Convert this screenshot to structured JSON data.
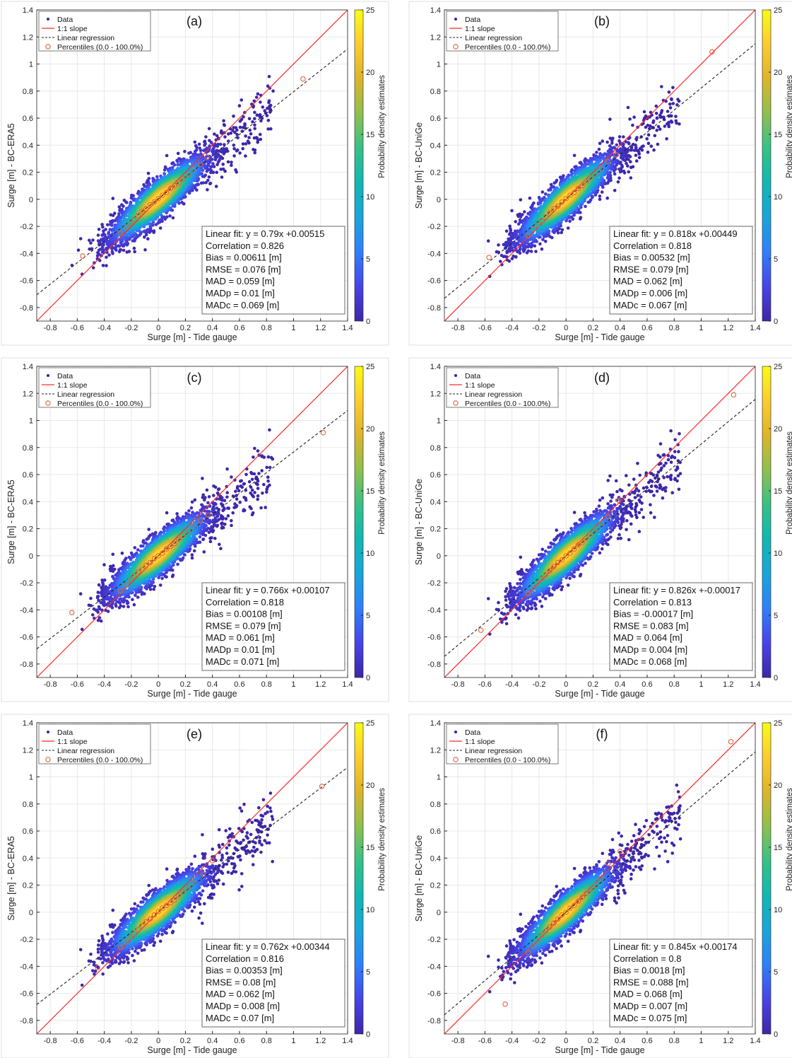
{
  "figure": {
    "xlabel": "Surge [m] - Tide gauge",
    "colorbar_label": "Probability density estimates",
    "colorbar_ticks": [
      "0",
      "5",
      "10",
      "15",
      "20",
      "25"
    ],
    "legend": {
      "data": "Data",
      "one_to_one": "1:1 slope",
      "regression": "Linear regression",
      "percentiles": "Percentiles (0.0 - 100.0%)"
    },
    "colors": {
      "one_to_one": "#ff2a2a",
      "regression": "#222222",
      "percentiles": "#e0643c",
      "data": "#3a1fa0",
      "grid": "#e8e8e8"
    },
    "colormap": [
      "#3e26a8",
      "#4744e8",
      "#2f7ffb",
      "#1aa5da",
      "#10b8b3",
      "#37c186",
      "#8fc04e",
      "#dcb52b",
      "#fdcb2f",
      "#f9fb15"
    ]
  },
  "chart_data": [
    {
      "type": "scatter",
      "panel": "(a)",
      "ylabel": "Surge [m] - BC-ERA5",
      "xlim": [
        -0.9,
        1.4
      ],
      "ylim": [
        -0.9,
        1.4
      ],
      "xticks": [
        -0.8,
        -0.6,
        -0.4,
        -0.2,
        0,
        0.2,
        0.4,
        0.6,
        0.8,
        1,
        1.2,
        1.4
      ],
      "yticks": [
        -0.8,
        -0.6,
        -0.4,
        -0.2,
        0,
        0.2,
        0.4,
        0.6,
        0.8,
        1,
        1.2,
        1.4
      ],
      "grid": true,
      "legend_position": "top-left",
      "colorbar_range": [
        0,
        25
      ],
      "regression": {
        "slope": 0.79,
        "intercept": 0.00515
      },
      "percentiles": {
        "x": [
          -0.56,
          -0.28,
          -0.24,
          -0.21,
          -0.18,
          -0.15,
          -0.12,
          -0.09,
          -0.06,
          -0.03,
          0,
          0.03,
          0.06,
          0.09,
          0.12,
          0.15,
          0.18,
          0.22,
          0.26,
          0.31,
          0.36,
          1.07
        ],
        "y": [
          -0.42,
          -0.25,
          -0.21,
          -0.18,
          -0.15,
          -0.12,
          -0.09,
          -0.07,
          -0.04,
          -0.02,
          0.005,
          0.03,
          0.05,
          0.08,
          0.1,
          0.12,
          0.15,
          0.18,
          0.22,
          0.26,
          0.31,
          0.89
        ]
      },
      "stats": [
        "Linear fit: y = 0.79x +0.00515",
        "Correlation = 0.826",
        "Bias = 0.00611 [m]",
        "RMSE = 0.076 [m]",
        "MAD = 0.059 [m]",
        "MADp = 0.01 [m]",
        "MADc = 0.069 [m]"
      ]
    },
    {
      "type": "scatter",
      "panel": "(b)",
      "ylabel": "Surge [m] - BC-UniGe",
      "xlim": [
        -0.9,
        1.4
      ],
      "ylim": [
        -0.9,
        1.4
      ],
      "xticks": [
        -0.8,
        -0.6,
        -0.4,
        -0.2,
        0,
        0.2,
        0.4,
        0.6,
        0.8,
        1,
        1.2,
        1.4
      ],
      "yticks": [
        -0.8,
        -0.6,
        -0.4,
        -0.2,
        0,
        0.2,
        0.4,
        0.6,
        0.8,
        1,
        1.2,
        1.4
      ],
      "grid": true,
      "legend_position": "top-left",
      "colorbar_range": [
        0,
        25
      ],
      "regression": {
        "slope": 0.818,
        "intercept": 0.00449
      },
      "percentiles": {
        "x": [
          -0.57,
          -0.28,
          -0.24,
          -0.21,
          -0.18,
          -0.15,
          -0.12,
          -0.09,
          -0.06,
          -0.03,
          0,
          0.03,
          0.06,
          0.09,
          0.12,
          0.15,
          0.18,
          0.22,
          0.26,
          0.31,
          0.37,
          1.08
        ],
        "y": [
          -0.43,
          -0.27,
          -0.22,
          -0.19,
          -0.16,
          -0.13,
          -0.1,
          -0.07,
          -0.05,
          -0.02,
          0.005,
          0.03,
          0.05,
          0.08,
          0.1,
          0.13,
          0.16,
          0.19,
          0.23,
          0.28,
          0.33,
          1.09
        ]
      },
      "stats": [
        "Linear fit: y = 0.818x +0.00449",
        "Correlation = 0.818",
        "Bias = 0.00532 [m]",
        "RMSE = 0.079 [m]",
        "MAD = 0.062 [m]",
        "MADp = 0.006 [m]",
        "MADc = 0.067 [m]"
      ]
    },
    {
      "type": "scatter",
      "panel": "(c)",
      "ylabel": "Surge [m] - BC-ERA5",
      "xlim": [
        -0.9,
        1.4
      ],
      "ylim": [
        -0.9,
        1.4
      ],
      "xticks": [
        -0.8,
        -0.6,
        -0.4,
        -0.2,
        0,
        0.2,
        0.4,
        0.6,
        0.8,
        1,
        1.2,
        1.4
      ],
      "yticks": [
        -0.8,
        -0.6,
        -0.4,
        -0.2,
        0,
        0.2,
        0.4,
        0.6,
        0.8,
        1,
        1.2,
        1.4
      ],
      "grid": true,
      "legend_position": "top-left",
      "colorbar_range": [
        0,
        25
      ],
      "regression": {
        "slope": 0.766,
        "intercept": 0.00107
      },
      "percentiles": {
        "x": [
          -0.64,
          -0.28,
          -0.24,
          -0.21,
          -0.18,
          -0.15,
          -0.12,
          -0.09,
          -0.06,
          -0.03,
          0,
          0.03,
          0.06,
          0.09,
          0.12,
          0.15,
          0.18,
          0.22,
          0.26,
          0.31,
          0.37,
          1.22
        ],
        "y": [
          -0.42,
          -0.26,
          -0.22,
          -0.18,
          -0.15,
          -0.12,
          -0.1,
          -0.07,
          -0.05,
          -0.02,
          0,
          0.02,
          0.05,
          0.07,
          0.09,
          0.12,
          0.15,
          0.18,
          0.22,
          0.26,
          0.3,
          0.91
        ]
      },
      "stats": [
        "Linear fit: y = 0.766x +0.00107",
        "Correlation = 0.818",
        "Bias = 0.00108 [m]",
        "RMSE = 0.079 [m]",
        "MAD = 0.061 [m]",
        "MADp = 0.01 [m]",
        "MADc = 0.071 [m]"
      ]
    },
    {
      "type": "scatter",
      "panel": "(d)",
      "ylabel": "Surge [m] - BC-UniGe",
      "xlim": [
        -0.9,
        1.4
      ],
      "ylim": [
        -0.9,
        1.4
      ],
      "xticks": [
        -0.8,
        -0.6,
        -0.4,
        -0.2,
        0,
        0.2,
        0.4,
        0.6,
        0.8,
        1,
        1.2,
        1.4
      ],
      "yticks": [
        -0.8,
        -0.6,
        -0.4,
        -0.2,
        0,
        0.2,
        0.4,
        0.6,
        0.8,
        1,
        1.2,
        1.4
      ],
      "grid": true,
      "legend_position": "top-left",
      "colorbar_range": [
        0,
        25
      ],
      "regression": {
        "slope": 0.826,
        "intercept": -0.00017
      },
      "percentiles": {
        "x": [
          -0.63,
          -0.28,
          -0.24,
          -0.21,
          -0.18,
          -0.15,
          -0.12,
          -0.09,
          -0.06,
          -0.03,
          0,
          0.03,
          0.06,
          0.09,
          0.12,
          0.15,
          0.18,
          0.22,
          0.26,
          0.31,
          0.39,
          1.24
        ],
        "y": [
          -0.55,
          -0.28,
          -0.24,
          -0.2,
          -0.17,
          -0.14,
          -0.11,
          -0.08,
          -0.05,
          -0.03,
          0,
          0.02,
          0.05,
          0.08,
          0.1,
          0.13,
          0.16,
          0.2,
          0.24,
          0.29,
          0.41,
          1.19
        ]
      },
      "stats": [
        "Linear fit: y = 0.826x +-0.00017",
        "Correlation = 0.813",
        "Bias = -0.00017 [m]",
        "RMSE = 0.083 [m]",
        "MAD = 0.064 [m]",
        "MADp = 0.004 [m]",
        "MADc = 0.068 [m]"
      ]
    },
    {
      "type": "scatter",
      "panel": "(e)",
      "ylabel": "Surge [m] - BC-ERA5",
      "xlim": [
        -0.9,
        1.4
      ],
      "ylim": [
        -0.9,
        1.4
      ],
      "xticks": [
        -0.8,
        -0.6,
        -0.4,
        -0.2,
        0,
        0.2,
        0.4,
        0.6,
        0.8,
        1,
        1.2,
        1.4
      ],
      "yticks": [
        -0.8,
        -0.6,
        -0.4,
        -0.2,
        0,
        0.2,
        0.4,
        0.6,
        0.8,
        1,
        1.2,
        1.4
      ],
      "grid": true,
      "legend_position": "top-left",
      "colorbar_range": [
        0,
        25
      ],
      "regression": {
        "slope": 0.762,
        "intercept": 0.00344
      },
      "percentiles": {
        "x": [
          -0.45,
          -0.28,
          -0.24,
          -0.21,
          -0.18,
          -0.15,
          -0.12,
          -0.09,
          -0.06,
          -0.03,
          0,
          0.03,
          0.06,
          0.09,
          0.12,
          0.15,
          0.18,
          0.22,
          0.26,
          0.33,
          0.4,
          1.21
        ],
        "y": [
          -0.41,
          -0.26,
          -0.22,
          -0.19,
          -0.16,
          -0.13,
          -0.1,
          -0.07,
          -0.05,
          -0.02,
          0.005,
          0.03,
          0.05,
          0.07,
          0.09,
          0.12,
          0.15,
          0.18,
          0.22,
          0.28,
          0.38,
          0.93
        ]
      },
      "stats": [
        "Linear fit: y = 0.762x +0.00344",
        "Correlation = 0.816",
        "Bias = 0.00353 [m]",
        "RMSE = 0.08 [m]",
        "MAD = 0.062 [m]",
        "MADp = 0.008 [m]",
        "MADc = 0.07 [m]"
      ]
    },
    {
      "type": "scatter",
      "panel": "(f)",
      "ylabel": "Surge [m] - BC-UniGe",
      "xlim": [
        -0.9,
        1.4
      ],
      "ylim": [
        -0.9,
        1.4
      ],
      "xticks": [
        -0.8,
        -0.6,
        -0.4,
        -0.2,
        0,
        0.2,
        0.4,
        0.6,
        0.8,
        1,
        1.2,
        1.4
      ],
      "yticks": [
        -0.8,
        -0.6,
        -0.4,
        -0.2,
        0,
        0.2,
        0.4,
        0.6,
        0.8,
        1,
        1.2,
        1.4
      ],
      "grid": true,
      "legend_position": "top-left",
      "colorbar_range": [
        0,
        25
      ],
      "regression": {
        "slope": 0.845,
        "intercept": 0.00174
      },
      "percentiles": {
        "x": [
          -0.45,
          -0.28,
          -0.24,
          -0.21,
          -0.18,
          -0.15,
          -0.12,
          -0.09,
          -0.06,
          -0.03,
          0,
          0.03,
          0.06,
          0.09,
          0.12,
          0.15,
          0.18,
          0.22,
          0.26,
          0.31,
          0.4,
          1.22
        ],
        "y": [
          -0.68,
          -0.3,
          -0.25,
          -0.21,
          -0.17,
          -0.14,
          -0.11,
          -0.08,
          -0.05,
          -0.02,
          0,
          0.03,
          0.05,
          0.08,
          0.11,
          0.14,
          0.17,
          0.2,
          0.25,
          0.36,
          0.45,
          1.26
        ]
      },
      "stats": [
        "Linear fit: y = 0.845x +0.00174",
        "Correlation = 0.8",
        "Bias = 0.0018 [m]",
        "RMSE = 0.088 [m]",
        "MAD = 0.068 [m]",
        "MADp = 0.007 [m]",
        "MADc = 0.075 [m]"
      ]
    }
  ]
}
